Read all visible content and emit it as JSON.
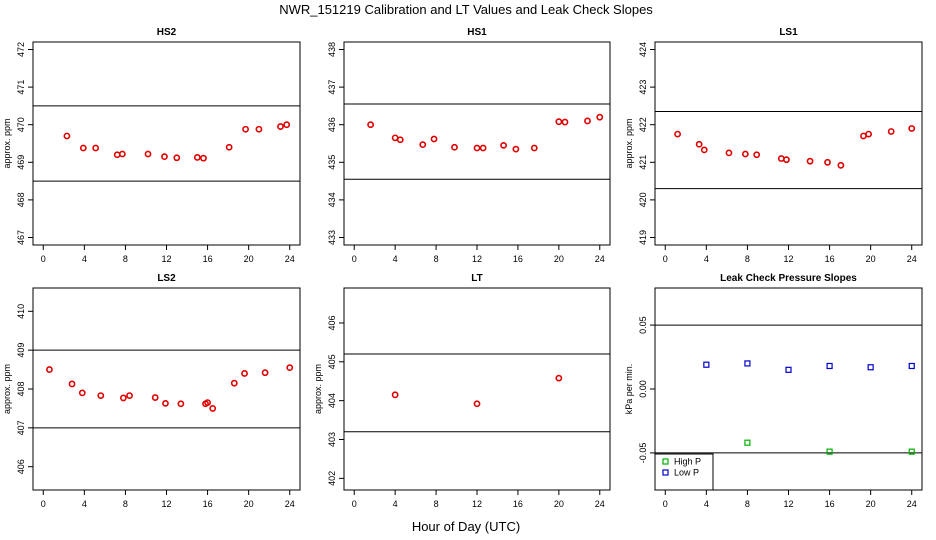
{
  "figure": {
    "title": "NWR_151219  Calibration and LT Values and Leak Check Slopes",
    "xlabel": "Hour of Day (UTC)"
  },
  "colors": {
    "cal_points": "#e00000",
    "high_p": "#00b000",
    "low_p": "#0000cc",
    "reference_lines": "#000000"
  },
  "chart_data": [
    {
      "type": "scatter",
      "title": "HS2",
      "ylabel": "approx. ppm",
      "xlim": [
        -1,
        25
      ],
      "ylim": [
        466.8,
        472.2
      ],
      "xticks": [
        0,
        4,
        8,
        12,
        16,
        20,
        24
      ],
      "yticks": [
        467,
        468,
        469,
        470,
        471,
        472
      ],
      "hlines": [
        470.5,
        468.5
      ],
      "series": [
        {
          "color": "#e00000",
          "marker": "o",
          "x": [
            2.3,
            3.9,
            5.1,
            7.2,
            7.7,
            10.2,
            11.8,
            13.0,
            15.0,
            15.6,
            18.1,
            19.7,
            21.0,
            23.1,
            23.7
          ],
          "y": [
            469.7,
            469.38,
            469.38,
            469.2,
            469.22,
            469.22,
            469.15,
            469.12,
            469.13,
            469.11,
            469.4,
            469.88,
            469.88,
            469.95,
            470.0
          ]
        }
      ]
    },
    {
      "type": "scatter",
      "title": "HS1",
      "ylabel": "",
      "xlim": [
        -1,
        25
      ],
      "ylim": [
        432.8,
        438.2
      ],
      "xticks": [
        0,
        4,
        8,
        12,
        16,
        20,
        24
      ],
      "yticks": [
        433,
        434,
        435,
        436,
        437,
        438
      ],
      "hlines": [
        436.55,
        434.55
      ],
      "series": [
        {
          "color": "#e00000",
          "marker": "o",
          "x": [
            1.6,
            4.0,
            4.5,
            6.7,
            7.8,
            9.8,
            12.0,
            12.6,
            14.6,
            15.8,
            17.6,
            20.0,
            20.6,
            22.8,
            24.0
          ],
          "y": [
            436.0,
            435.65,
            435.6,
            435.47,
            435.62,
            435.4,
            435.38,
            435.38,
            435.45,
            435.35,
            435.38,
            436.08,
            436.07,
            436.1,
            436.2
          ]
        }
      ]
    },
    {
      "type": "scatter",
      "title": "LS1",
      "ylabel": "approx. ppm",
      "xlim": [
        -1,
        25
      ],
      "ylim": [
        418.8,
        424.2
      ],
      "xticks": [
        0,
        4,
        8,
        12,
        16,
        20,
        24
      ],
      "yticks": [
        419,
        420,
        421,
        422,
        423,
        424
      ],
      "hlines": [
        422.35,
        420.3
      ],
      "series": [
        {
          "color": "#e00000",
          "marker": "o",
          "x": [
            1.2,
            3.3,
            3.8,
            6.2,
            7.8,
            8.9,
            11.3,
            11.8,
            14.1,
            15.8,
            17.1,
            19.3,
            19.8,
            22.0,
            24.0
          ],
          "y": [
            421.75,
            421.48,
            421.33,
            421.25,
            421.22,
            421.2,
            421.1,
            421.07,
            421.03,
            421.0,
            420.92,
            421.7,
            421.75,
            421.82,
            421.9
          ]
        }
      ]
    },
    {
      "type": "scatter",
      "title": "LS2",
      "ylabel": "approx. ppm",
      "xlim": [
        -1,
        25
      ],
      "ylim": [
        405.4,
        410.6
      ],
      "xticks": [
        0,
        4,
        8,
        12,
        16,
        20,
        24
      ],
      "yticks": [
        406,
        407,
        408,
        409,
        410
      ],
      "hlines": [
        409.0,
        407.0
      ],
      "series": [
        {
          "color": "#e00000",
          "marker": "o",
          "x": [
            0.6,
            2.8,
            3.8,
            5.6,
            7.8,
            8.4,
            10.9,
            11.9,
            13.4,
            15.8,
            16.0,
            16.5,
            18.6,
            19.6,
            21.6,
            24.0
          ],
          "y": [
            408.5,
            408.13,
            407.9,
            407.83,
            407.77,
            407.83,
            407.78,
            407.63,
            407.62,
            407.62,
            407.65,
            407.5,
            408.15,
            408.4,
            408.42,
            408.55
          ]
        }
      ]
    },
    {
      "type": "scatter",
      "title": "LT",
      "ylabel": "approx. ppm",
      "xlim": [
        -1,
        25
      ],
      "ylim": [
        401.7,
        406.9
      ],
      "xticks": [
        0,
        4,
        8,
        12,
        16,
        20,
        24
      ],
      "yticks": [
        402,
        403,
        404,
        405,
        406
      ],
      "hlines": [
        405.2,
        403.2
      ],
      "series": [
        {
          "color": "#e00000",
          "marker": "o",
          "x": [
            4.0,
            12.0,
            20.0
          ],
          "y": [
            404.15,
            403.92,
            404.58
          ]
        }
      ]
    },
    {
      "type": "scatter",
      "title": "Leak Check Pressure Slopes",
      "ylabel": "kPa per min.",
      "xlim": [
        -1,
        25
      ],
      "ylim": [
        -0.079,
        0.079
      ],
      "xticks": [
        0,
        4,
        8,
        12,
        16,
        20,
        24
      ],
      "yticks": [
        -0.05,
        0.0,
        0.05
      ],
      "ytick_labels": [
        "-0.05",
        "0.00",
        "0.05"
      ],
      "hlines": [
        0.05,
        -0.05
      ],
      "legend": "bottom-left",
      "series": [
        {
          "name": "High P",
          "color": "#00b000",
          "marker": "s",
          "x": [
            8.0,
            16.0,
            24.0
          ],
          "y": [
            -0.042,
            -0.049,
            -0.049
          ]
        },
        {
          "name": "Low P",
          "color": "#0000cc",
          "marker": "s",
          "x": [
            4.0,
            8.0,
            12.0,
            16.0,
            20.0,
            24.0
          ],
          "y": [
            0.019,
            0.02,
            0.015,
            0.018,
            0.017,
            0.018
          ]
        }
      ]
    }
  ]
}
